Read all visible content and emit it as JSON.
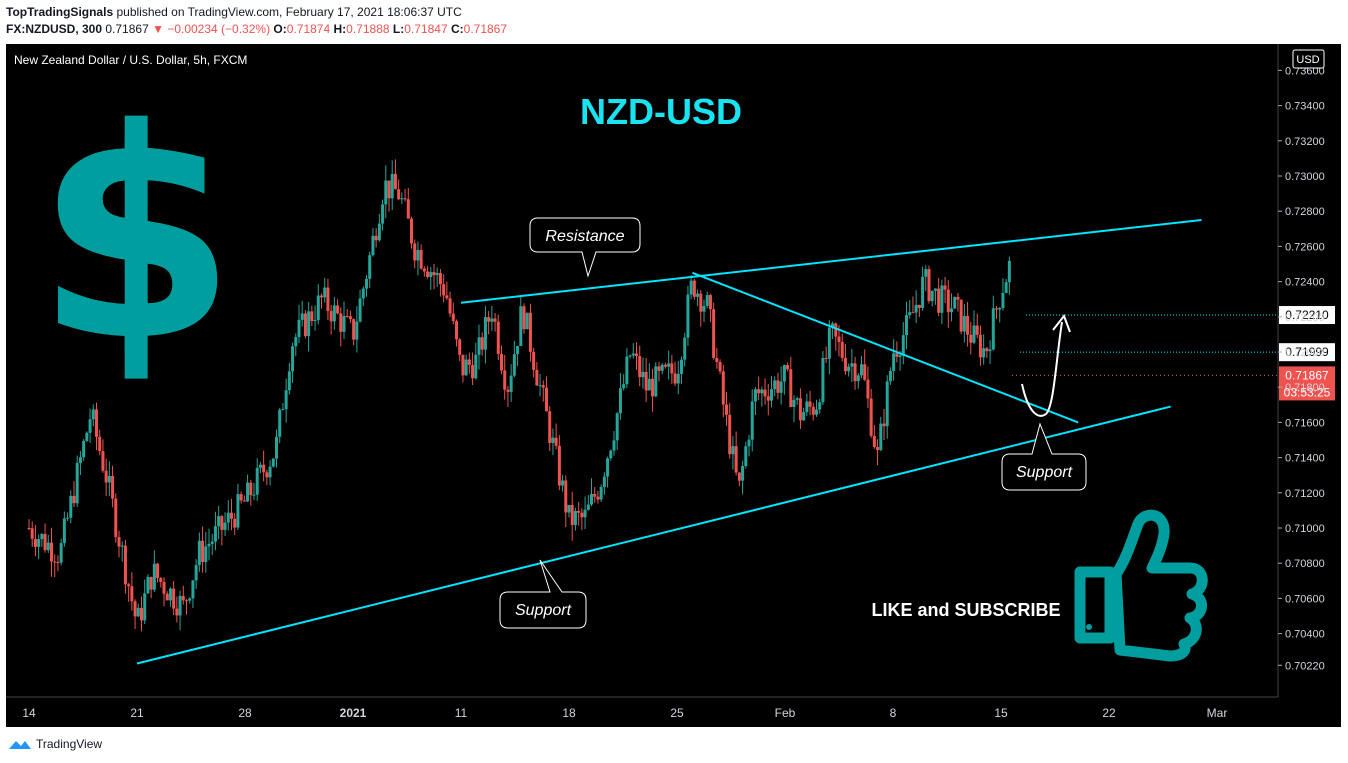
{
  "header": {
    "author": "TopTradingSignals",
    "published_text": "published on TradingView.com, February 17, 2021 18:06:37 UTC",
    "symbol_line": "FX:NZDUSD, 300",
    "last_price": "0.71867",
    "change_text": "▼ −0.00234 (−0.32%)",
    "o_label": "O:",
    "o_value": "0.71874",
    "h_label": "H:",
    "h_value": "0.71888",
    "l_label": "L:",
    "l_value": "0.71847",
    "c_label": "C:",
    "c_value": "0.71867"
  },
  "chart_title": "New Zealand Dollar / U.S. Dollar, 5h, FXCM",
  "currency_badge": "USD",
  "big_title": "NZD-USD",
  "dollar_symbol": "$",
  "like_text": "LIKE and SUBSCRIBE",
  "thumbs_icon": "thumbs-up-icon",
  "labels": {
    "resistance": "Resistance",
    "support_low": "Support",
    "support_right": "Support"
  },
  "price_tags": {
    "level_upper": "0.72210",
    "level_lower": "0.71999",
    "current": "0.71867",
    "countdown": "03:53:25"
  },
  "footer": {
    "brand": "TradingView"
  },
  "colors": {
    "up": "#26a69a",
    "down": "#ef5350",
    "trendline": "#00e5ff",
    "accent": "#009e9e",
    "title": "#19e3f0"
  },
  "chart_data": {
    "type": "candlestick",
    "y_ticks": [
      "0.73600",
      "0.73400",
      "0.73200",
      "0.73000",
      "0.72800",
      "0.72600",
      "0.72400",
      "0.72200",
      "0.72000",
      "0.71800",
      "0.71600",
      "0.71400",
      "0.71200",
      "0.71000",
      "0.70800",
      "0.70600",
      "0.70400",
      "0.70220"
    ],
    "x_ticks": [
      "14",
      "21",
      "28",
      "2021",
      "11",
      "18",
      "25",
      "Feb",
      "8",
      "15",
      "22",
      "Mar"
    ],
    "ylim": [
      0.701,
      0.7375
    ],
    "close_path": [
      [
        "2020-12-14",
        0.71
      ],
      [
        "2020-12-16",
        0.7085
      ],
      [
        "2020-12-18",
        0.7165
      ],
      [
        "2020-12-19",
        0.713
      ],
      [
        "2020-12-21",
        0.7045
      ],
      [
        "2020-12-22",
        0.7075
      ],
      [
        "2020-12-24",
        0.7055
      ],
      [
        "2020-12-25",
        0.7085
      ],
      [
        "2020-12-28",
        0.7115
      ],
      [
        "2020-12-30",
        0.7145
      ],
      [
        "2020-12-31",
        0.7205
      ],
      [
        "2021-01-02",
        0.723
      ],
      [
        "2021-01-04",
        0.721
      ],
      [
        "2021-01-05",
        0.725
      ],
      [
        "2021-01-06",
        0.7295
      ],
      [
        "2021-01-07",
        0.729
      ],
      [
        "2021-01-08",
        0.726
      ],
      [
        "2021-01-10",
        0.7235
      ],
      [
        "2021-01-11",
        0.719
      ],
      [
        "2021-01-12",
        0.7195
      ],
      [
        "2021-01-13",
        0.7225
      ],
      [
        "2021-01-14",
        0.718
      ],
      [
        "2021-01-15",
        0.7225
      ],
      [
        "2021-01-16",
        0.7185
      ],
      [
        "2021-01-18",
        0.7105
      ],
      [
        "2021-01-19",
        0.7105
      ],
      [
        "2021-01-20",
        0.7125
      ],
      [
        "2021-01-21",
        0.716
      ],
      [
        "2021-01-22",
        0.72
      ],
      [
        "2021-01-23",
        0.718
      ],
      [
        "2021-01-25",
        0.719
      ],
      [
        "2021-01-26",
        0.724
      ],
      [
        "2021-01-27",
        0.7225
      ],
      [
        "2021-01-28",
        0.717
      ],
      [
        "2021-01-29",
        0.712
      ],
      [
        "2021-01-30",
        0.7175
      ],
      [
        "2021-02-01",
        0.7185
      ],
      [
        "2021-02-02",
        0.7165
      ],
      [
        "2021-02-03",
        0.717
      ],
      [
        "2021-02-04",
        0.721
      ],
      [
        "2021-02-05",
        0.7195
      ],
      [
        "2021-02-06",
        0.719
      ],
      [
        "2021-02-07",
        0.714
      ],
      [
        "2021-02-08",
        0.72
      ],
      [
        "2021-02-09",
        0.7215
      ],
      [
        "2021-02-10",
        0.724
      ],
      [
        "2021-02-11",
        0.723
      ],
      [
        "2021-02-12",
        0.7225
      ],
      [
        "2021-02-13",
        0.721
      ],
      [
        "2021-02-14",
        0.72
      ],
      [
        "2021-02-15",
        0.7235
      ],
      [
        "2021-02-16",
        0.726
      ],
      [
        "2021-02-17",
        0.7187
      ]
    ],
    "trendlines": [
      {
        "name": "Resistance",
        "from": [
          "2021-01-11",
          0.7228
        ],
        "to": [
          "2021-02-28",
          0.7275
        ]
      },
      {
        "name": "Support",
        "from": [
          "2020-12-21",
          0.7023
        ],
        "to": [
          "2021-02-26",
          0.7169
        ]
      },
      {
        "name": "",
        "from": [
          "2021-01-26",
          0.7245
        ],
        "to": [
          "2021-02-20",
          0.716
        ]
      }
    ],
    "horizontal_levels": [
      0.7221,
      0.71999
    ],
    "current_price": 0.71867,
    "grid": false
  }
}
